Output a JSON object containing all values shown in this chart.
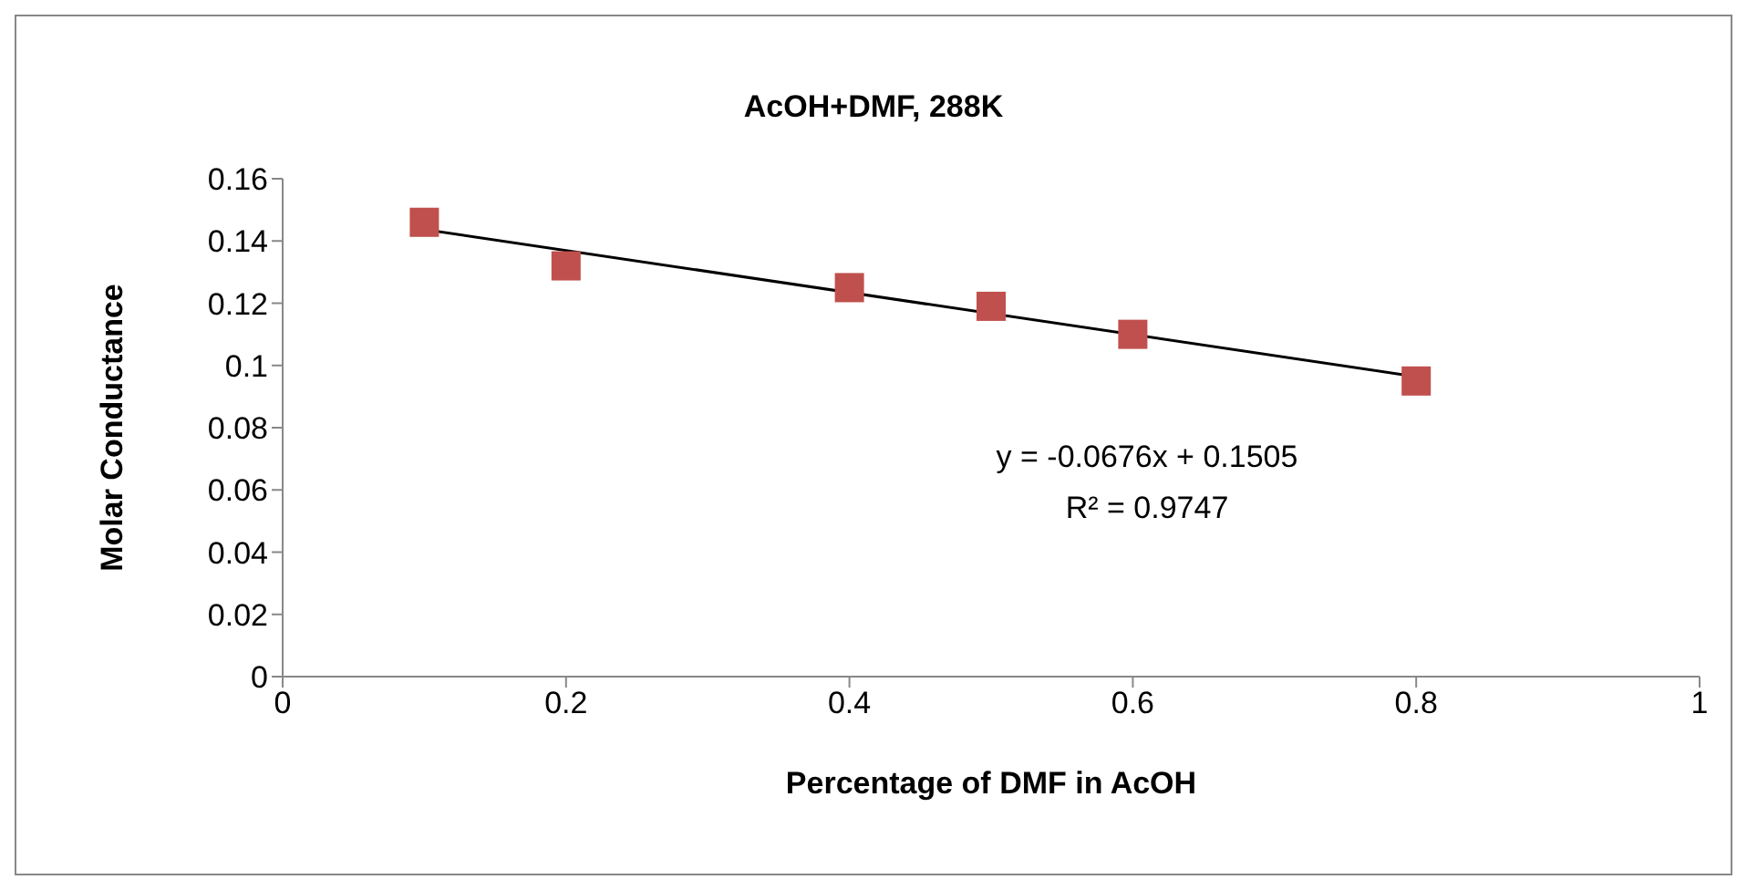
{
  "chart_data": {
    "type": "scatter",
    "title": "AcOH+DMF, 288K",
    "xlabel": "Percentage of DMF in AcOH",
    "ylabel": "Molar Conductance",
    "xlim": [
      0,
      1
    ],
    "xticks": [
      0,
      0.2,
      0.4,
      0.6,
      0.8,
      1
    ],
    "ylim": [
      0,
      0.16
    ],
    "yticks": [
      0,
      0.02,
      0.04,
      0.06,
      0.08,
      0.1,
      0.12,
      0.14,
      0.16
    ],
    "grid": false,
    "legend": false,
    "series": [
      {
        "marker": "square",
        "color": "#c0504d",
        "x": [
          0.1,
          0.2,
          0.4,
          0.5,
          0.6,
          0.8
        ],
        "values": [
          0.146,
          0.132,
          0.125,
          0.119,
          0.11,
          0.095
        ]
      },
      {
        "type": "line",
        "marker": "none",
        "color": "#000000",
        "x": [
          0.1,
          0.8
        ],
        "values": [
          0.1437,
          0.0964
        ]
      }
    ],
    "annotations": [
      "y = -0.0676x + 0.1505",
      "R² = 0.9747"
    ]
  }
}
